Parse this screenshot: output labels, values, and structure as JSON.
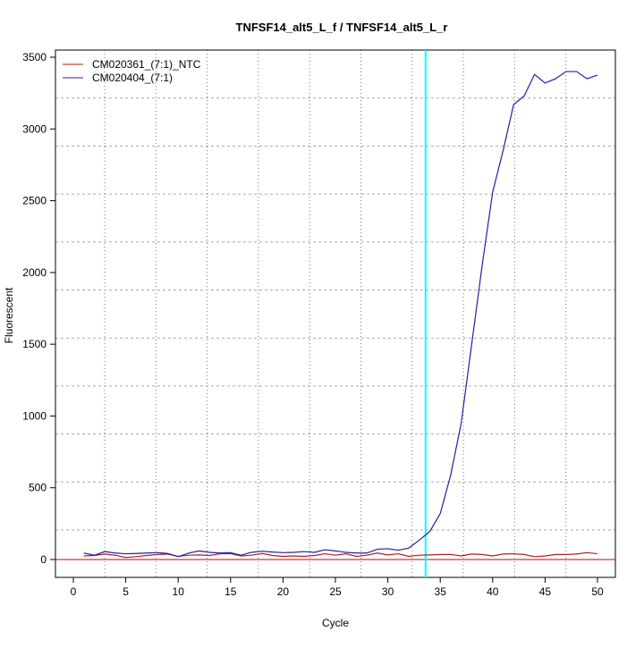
{
  "chart_data": {
    "type": "line",
    "title": "TNFSF14_alt5_L_f / TNFSF14_alt5_L_r",
    "xlabel": "Cycle",
    "ylabel": "Fluorescent",
    "xlim": [
      -2,
      52
    ],
    "ylim": [
      -120,
      3500
    ],
    "xticks": [
      0,
      5,
      10,
      15,
      20,
      25,
      30,
      35,
      40,
      45,
      50
    ],
    "yticks": [
      0,
      500,
      1000,
      1500,
      2000,
      2500,
      3000,
      3500
    ],
    "grid": true,
    "legend_position": "top-left",
    "threshold_cycle": 33.6,
    "threshold_color": "#00ffff",
    "baseline_color": "#cc0000",
    "x": [
      1,
      2,
      3,
      4,
      5,
      6,
      7,
      8,
      9,
      10,
      11,
      12,
      13,
      14,
      15,
      16,
      17,
      18,
      19,
      20,
      21,
      22,
      23,
      24,
      25,
      26,
      27,
      28,
      29,
      30,
      31,
      32,
      33,
      34,
      35,
      36,
      37,
      38,
      39,
      40,
      41,
      42,
      43,
      44,
      45,
      46,
      47,
      48,
      49,
      50
    ],
    "series": [
      {
        "name": "CM020361_(7:1)_NTC",
        "color": "#aa2020",
        "values": [
          25,
          28,
          38,
          30,
          14,
          20,
          28,
          35,
          38,
          22,
          30,
          32,
          28,
          40,
          40,
          25,
          30,
          42,
          28,
          22,
          25,
          22,
          28,
          40,
          30,
          40,
          22,
          30,
          45,
          32,
          40,
          22,
          30,
          32,
          35,
          35,
          25,
          38,
          35,
          25,
          38,
          40,
          35,
          20,
          25,
          35,
          35,
          38,
          48,
          40
        ]
      },
      {
        "name": "CM020404_(7:1)",
        "color": "#2020a0",
        "values": [
          45,
          30,
          55,
          45,
          40,
          42,
          45,
          48,
          42,
          20,
          45,
          60,
          50,
          45,
          48,
          30,
          50,
          58,
          52,
          48,
          50,
          55,
          50,
          68,
          60,
          50,
          45,
          45,
          72,
          75,
          65,
          80,
          135,
          195,
          320,
          590,
          950,
          1500,
          2050,
          2560,
          2850,
          3170,
          3230,
          3380,
          3320,
          3350,
          3400,
          3400,
          3350,
          3375
        ]
      }
    ]
  }
}
